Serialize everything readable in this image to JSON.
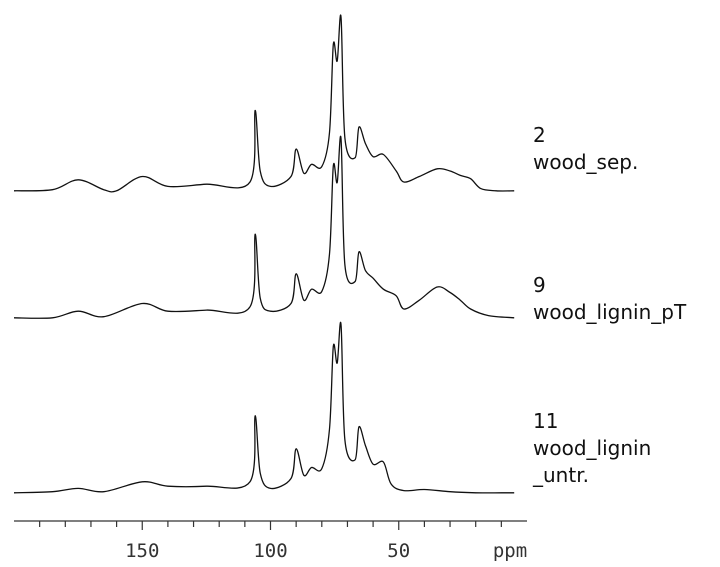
{
  "chart_data": {
    "type": "line",
    "title": "",
    "xlabel": "ppm",
    "ylabel": "",
    "x_reversed": true,
    "xlim": [
      0,
      200
    ],
    "xticks": [
      150,
      100,
      50
    ],
    "grid": false,
    "legend": "right",
    "series": [
      {
        "name": "2\nwood_sep.",
        "label_lines": [
          "2",
          "wood_sep."
        ],
        "x": [
          200,
          185,
          175,
          165,
          160,
          150,
          140,
          125,
          108,
          106,
          104,
          100,
          92,
          90,
          87,
          84,
          80,
          77,
          75.5,
          74,
          72.5,
          71,
          67,
          65.5,
          63,
          60,
          56,
          51,
          48,
          42,
          35,
          30,
          26,
          22,
          18,
          12,
          5
        ],
        "values": [
          0.02,
          0.03,
          0.12,
          0.03,
          0.02,
          0.15,
          0.06,
          0.08,
          0.1,
          0.75,
          0.2,
          0.06,
          0.15,
          0.4,
          0.18,
          0.26,
          0.24,
          0.55,
          1.35,
          1.2,
          1.6,
          0.5,
          0.32,
          0.6,
          0.45,
          0.33,
          0.35,
          0.2,
          0.1,
          0.15,
          0.22,
          0.2,
          0.16,
          0.13,
          0.04,
          0.02,
          0.02
        ]
      },
      {
        "name": "9\nwood_lignin_pT",
        "label_lines": [
          "9",
          "wood_lignin_pT"
        ],
        "x": [
          200,
          185,
          175,
          165,
          150,
          140,
          125,
          108,
          106,
          104,
          100,
          92,
          90,
          87,
          84,
          80,
          77,
          75.5,
          74,
          72.5,
          71,
          67,
          65.5,
          63,
          60,
          56,
          51,
          48,
          42,
          35,
          30,
          26,
          22,
          15,
          5
        ],
        "values": [
          0.02,
          0.02,
          0.08,
          0.03,
          0.15,
          0.08,
          0.09,
          0.12,
          0.78,
          0.2,
          0.08,
          0.15,
          0.42,
          0.18,
          0.28,
          0.26,
          0.6,
          1.4,
          1.25,
          1.65,
          0.5,
          0.35,
          0.62,
          0.45,
          0.38,
          0.28,
          0.22,
          0.1,
          0.18,
          0.3,
          0.25,
          0.18,
          0.1,
          0.04,
          0.02
        ]
      },
      {
        "name": "11\nwood_lignin\n_untr.",
        "label_lines": [
          "11",
          "wood_lignin",
          "_untr."
        ],
        "x": [
          200,
          185,
          175,
          165,
          150,
          140,
          125,
          108,
          106,
          104,
          100,
          92,
          90,
          87,
          84,
          80,
          77,
          75.5,
          74,
          72.5,
          71,
          67,
          65.5,
          63,
          60,
          56,
          53,
          48,
          40,
          30,
          20,
          10,
          5
        ],
        "values": [
          0.02,
          0.03,
          0.06,
          0.03,
          0.12,
          0.08,
          0.08,
          0.12,
          0.72,
          0.2,
          0.06,
          0.15,
          0.42,
          0.18,
          0.25,
          0.24,
          0.6,
          1.35,
          1.2,
          1.55,
          0.5,
          0.32,
          0.62,
          0.45,
          0.28,
          0.3,
          0.1,
          0.04,
          0.05,
          0.03,
          0.02,
          0.02,
          0.02
        ]
      }
    ]
  }
}
